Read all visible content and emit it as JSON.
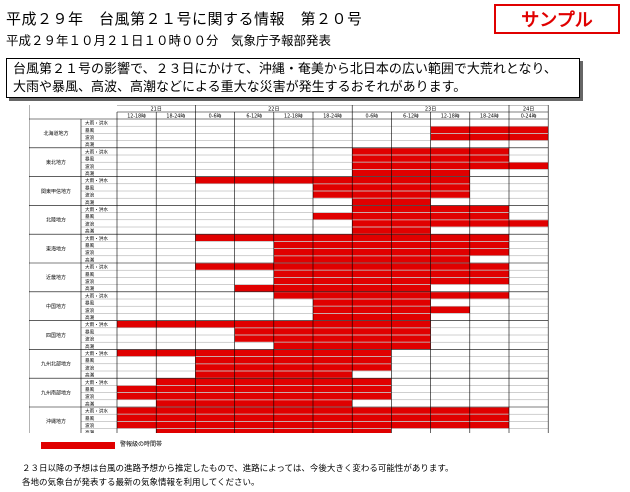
{
  "header": {
    "title": "平成２９年　台風第２１号に関する情報　第２０号",
    "issued": "平成２９年１０月２１日１０時００分　気象庁予報部発表",
    "sample_label": "サンプル"
  },
  "summary": {
    "line1": "台風第２１号の影響で、２３日にかけて、沖縄・奄美から北日本の広い範囲で大荒れとなり、",
    "line2": "大雨や暴風、高波、高潮などによる重大な災害が発生するおそれがあります。"
  },
  "table": {
    "days": [
      {
        "label": "21日",
        "span": 2
      },
      {
        "label": "22日",
        "span": 4
      },
      {
        "label": "23日",
        "span": 4
      },
      {
        "label": "24日",
        "span": 1
      }
    ],
    "periods": [
      "12-18時",
      "18-24時",
      "0-6時",
      "6-12時",
      "12-18時",
      "18-24時",
      "0-6時",
      "6-12時",
      "12-18時",
      "18-24時",
      "0-24時"
    ],
    "hazard_types": [
      "大雨・洪水",
      "暴風",
      "波浪",
      "高潮"
    ],
    "regions": [
      {
        "name": "北海道地方",
        "rows": [
          [],
          [
            8,
            9,
            10
          ],
          [
            8,
            9,
            10
          ],
          []
        ]
      },
      {
        "name": "東北地方",
        "rows": [
          [
            6,
            7,
            8,
            9
          ],
          [
            6,
            7,
            8,
            9
          ],
          [
            6,
            7,
            8,
            9,
            10
          ],
          [
            6,
            7,
            8
          ]
        ]
      },
      {
        "name": "関東甲信地方",
        "rows": [
          [
            2,
            3,
            4,
            5,
            6,
            7,
            8
          ],
          [
            5,
            6,
            7,
            8
          ],
          [
            5,
            6,
            7,
            8
          ],
          [
            6,
            7
          ]
        ]
      },
      {
        "name": "北陸地方",
        "rows": [
          [
            6,
            7,
            8,
            9
          ],
          [
            5,
            6,
            7,
            8,
            9
          ],
          [
            6,
            7,
            8,
            9,
            10
          ],
          [
            6,
            7
          ]
        ]
      },
      {
        "name": "東海地方",
        "rows": [
          [
            2,
            3,
            4,
            5,
            6,
            7,
            8,
            9
          ],
          [
            4,
            5,
            6,
            7,
            8,
            9
          ],
          [
            4,
            5,
            6,
            7,
            8,
            9
          ],
          [
            4,
            5,
            6,
            7,
            8
          ]
        ]
      },
      {
        "name": "近畿地方",
        "rows": [
          [
            2,
            3,
            4,
            5,
            6,
            7,
            8,
            9
          ],
          [
            4,
            5,
            6,
            7,
            8,
            9
          ],
          [
            4,
            5,
            6,
            7,
            8,
            9
          ],
          [
            3,
            4,
            5,
            6,
            7
          ]
        ]
      },
      {
        "name": "中国地方",
        "rows": [
          [
            4,
            5,
            6,
            7,
            8,
            9
          ],
          [
            5,
            6,
            7
          ],
          [
            5,
            6,
            7,
            8
          ],
          [
            5,
            6,
            7
          ]
        ]
      },
      {
        "name": "四国地方",
        "rows": [
          [
            0,
            1,
            2,
            3,
            4,
            5,
            6,
            7
          ],
          [
            3,
            4,
            5,
            6,
            7
          ],
          [
            3,
            4,
            5,
            6,
            7
          ],
          [
            4,
            5,
            6,
            7
          ]
        ]
      },
      {
        "name": "九州北部地方",
        "rows": [
          [
            0,
            1,
            2,
            3,
            4,
            5,
            6
          ],
          [
            2,
            3,
            4,
            5,
            6
          ],
          [
            2,
            3,
            4,
            5,
            6
          ],
          [
            2,
            3,
            4,
            5
          ]
        ]
      },
      {
        "name": "九州南部地方",
        "rows": [
          [
            1,
            2,
            3,
            4,
            5,
            6
          ],
          [
            0,
            1,
            2,
            3,
            4,
            5,
            6
          ],
          [
            0,
            1,
            2,
            3,
            4,
            5,
            6
          ],
          [
            1,
            2,
            3,
            4,
            5
          ]
        ]
      },
      {
        "name": "沖縄地方",
        "rows": [
          [
            0,
            1,
            2,
            3,
            4,
            5,
            6,
            7,
            8,
            9
          ],
          [
            0,
            1,
            2,
            3,
            4,
            5,
            6,
            7,
            8,
            9
          ],
          [
            0,
            1,
            2,
            3,
            4,
            5,
            6,
            7,
            8,
            9
          ],
          [
            1,
            2,
            3,
            4,
            5,
            6
          ]
        ]
      }
    ],
    "legend": "警報級の時間帯",
    "warning_color": "#e00000"
  },
  "notes": {
    "line1": "２３日以降の予想は台風の進路予想から推定したもので、進路によっては、今後大きく変わる可能性があります。",
    "line2": "各地の気象台が発表する最新の気象情報を利用してください。"
  }
}
